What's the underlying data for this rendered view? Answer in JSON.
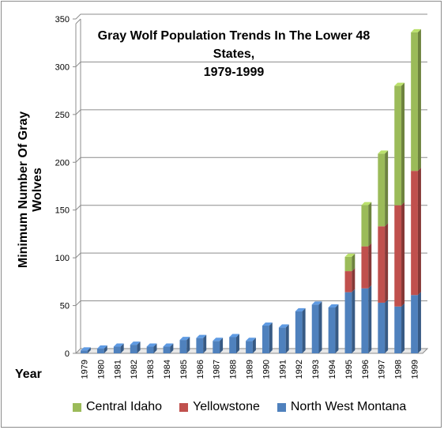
{
  "chart_data": {
    "type": "stacked-bar",
    "title": "Gray Wolf Population Trends In The Lower 48 States, 1979-1999",
    "title_lines": [
      "Gray Wolf Population Trends In The Lower 48 States,",
      "1979-1999"
    ],
    "xlabel": "Year",
    "ylabel": "Minimum Number Of Gray Wolves",
    "ylim": [
      0,
      350
    ],
    "yticks": [
      0,
      50,
      100,
      150,
      200,
      250,
      300,
      350
    ],
    "grid": true,
    "legend_position": "bottom",
    "categories": [
      "1979",
      "1980",
      "1981",
      "1982",
      "1983",
      "1984",
      "1985",
      "1986",
      "1987",
      "1988",
      "1989",
      "1990",
      "1991",
      "1992",
      "1993",
      "1994",
      "1995",
      "1996",
      "1997",
      "1998",
      "1999"
    ],
    "series": [
      {
        "name": "North West Montana",
        "color": "#4f81bd",
        "values": [
          3,
          5,
          7,
          9,
          7,
          7,
          14,
          16,
          13,
          17,
          13,
          29,
          27,
          44,
          51,
          48,
          64,
          68,
          53,
          49,
          61
        ]
      },
      {
        "name": "Yellowstone",
        "color": "#c0504d",
        "values": [
          0,
          0,
          0,
          0,
          0,
          0,
          0,
          0,
          0,
          0,
          0,
          0,
          0,
          0,
          0,
          0,
          22,
          44,
          80,
          106,
          130
        ]
      },
      {
        "name": "Central Idaho",
        "color": "#9bbb59",
        "values": [
          0,
          0,
          0,
          0,
          0,
          0,
          0,
          0,
          0,
          0,
          0,
          0,
          0,
          0,
          0,
          0,
          15,
          43,
          76,
          125,
          145
        ]
      }
    ],
    "legend_order": [
      "Central Idaho",
      "Yellowstone",
      "North West Montana"
    ]
  }
}
